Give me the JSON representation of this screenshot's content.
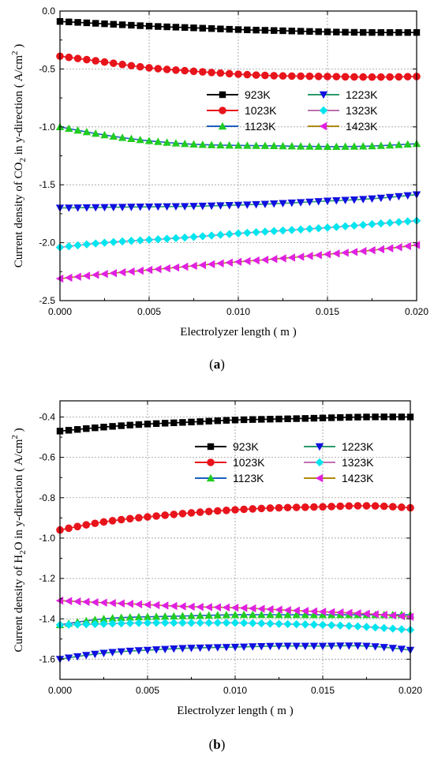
{
  "chart_data": [
    {
      "type": "line",
      "caption": {
        "open": "(",
        "letter": "a",
        "close": ")"
      },
      "xlabel": "Electrolyzer length ( m )",
      "ylabel": {
        "prefix": "Current density of CO",
        "sub": "2",
        "mid": " in y-direction ( A/cm",
        "sup": "2",
        "suffix": " )"
      },
      "xlim": [
        0,
        0.02
      ],
      "ylim": [
        -2.5,
        0
      ],
      "xticks": [
        0,
        0.005,
        0.01,
        0.015,
        0.02
      ],
      "xtick_labels": [
        "0.000",
        "0.005",
        "0.010",
        "0.015",
        "0.020"
      ],
      "yticks": [
        -2.5,
        -2.0,
        -1.5,
        -1.0,
        -0.5,
        0.0
      ],
      "ytick_labels": [
        "-2.5",
        "-2.0",
        "-1.5",
        "-1.0",
        "-0.5",
        "0.0"
      ],
      "grid": true,
      "legend_position": "upper-right",
      "x": [
        0,
        0.0025,
        0.005,
        0.0075,
        0.01,
        0.0125,
        0.015,
        0.0175,
        0.02
      ],
      "series": [
        {
          "name": "923K",
          "color": "#000000",
          "marker": "square",
          "values": [
            -0.09,
            -0.11,
            -0.13,
            -0.145,
            -0.16,
            -0.17,
            -0.18,
            -0.185,
            -0.185
          ]
        },
        {
          "name": "1023K",
          "color": "#e8141c",
          "marker": "circle",
          "values": [
            -0.39,
            -0.44,
            -0.49,
            -0.52,
            -0.545,
            -0.56,
            -0.565,
            -0.57,
            -0.565
          ]
        },
        {
          "name": "1123K",
          "color": "#22cc22",
          "line_color": "#1a5fbf",
          "marker": "triangle-up",
          "values": [
            -1.0,
            -1.07,
            -1.12,
            -1.15,
            -1.16,
            -1.165,
            -1.17,
            -1.165,
            -1.145
          ]
        },
        {
          "name": "1223K",
          "color": "#1010e0",
          "line_color": "#2a9a6a",
          "marker": "triangle-down",
          "values": [
            -1.7,
            -1.695,
            -1.69,
            -1.685,
            -1.675,
            -1.66,
            -1.64,
            -1.62,
            -1.585
          ]
        },
        {
          "name": "1323K",
          "color": "#00e5ee",
          "line_color": "#c070b0",
          "marker": "diamond",
          "values": [
            -2.04,
            -2.0,
            -1.975,
            -1.95,
            -1.92,
            -1.895,
            -1.87,
            -1.84,
            -1.81
          ]
        },
        {
          "name": "1423K",
          "color": "#e020e0",
          "line_color": "#b08a10",
          "marker": "triangle-left",
          "values": [
            -2.31,
            -2.27,
            -2.235,
            -2.2,
            -2.165,
            -2.135,
            -2.1,
            -2.065,
            -2.02
          ]
        }
      ]
    },
    {
      "type": "line",
      "caption": {
        "open": "(",
        "letter": "b",
        "close": ")"
      },
      "xlabel": "Electrolyzer length ( m )",
      "ylabel": {
        "prefix": "Current density of H",
        "sub": "2",
        "mid": "O in y-direction ( A/cm",
        "sup": "2",
        "suffix": " )"
      },
      "xlim": [
        0,
        0.02
      ],
      "ylim": [
        -1.7,
        -0.32
      ],
      "xticks": [
        0,
        0.005,
        0.01,
        0.015,
        0.02
      ],
      "xtick_labels": [
        "0.000",
        "0.005",
        "0.010",
        "0.015",
        "0.020"
      ],
      "yticks": [
        -1.6,
        -1.4,
        -1.2,
        -1.0,
        -0.8,
        -0.6,
        -0.4
      ],
      "ytick_labels": [
        "-1.6",
        "-1.4",
        "-1.2",
        "-1.0",
        "-0.8",
        "-0.6",
        "-0.4"
      ],
      "grid": true,
      "legend_position": "upper-right",
      "x": [
        0,
        0.0025,
        0.005,
        0.0075,
        0.01,
        0.0125,
        0.015,
        0.0175,
        0.02
      ],
      "series": [
        {
          "name": "923K",
          "color": "#000000",
          "marker": "square",
          "values": [
            -0.47,
            -0.45,
            -0.435,
            -0.425,
            -0.415,
            -0.41,
            -0.405,
            -0.4,
            -0.4
          ]
        },
        {
          "name": "1023K",
          "color": "#e8141c",
          "marker": "circle",
          "values": [
            -0.96,
            -0.92,
            -0.895,
            -0.875,
            -0.86,
            -0.85,
            -0.845,
            -0.84,
            -0.85
          ]
        },
        {
          "name": "1123K",
          "color": "#22cc22",
          "line_color": "#1a5fbf",
          "marker": "triangle-up",
          "values": [
            -1.43,
            -1.4,
            -1.39,
            -1.385,
            -1.38,
            -1.38,
            -1.38,
            -1.38,
            -1.38
          ]
        },
        {
          "name": "1223K",
          "color": "#1010e0",
          "line_color": "#2a9a6a",
          "marker": "triangle-down",
          "values": [
            -1.6,
            -1.57,
            -1.555,
            -1.545,
            -1.54,
            -1.535,
            -1.535,
            -1.535,
            -1.555
          ]
        },
        {
          "name": "1323K",
          "color": "#00e5ee",
          "line_color": "#c070b0",
          "marker": "diamond",
          "values": [
            -1.43,
            -1.425,
            -1.42,
            -1.42,
            -1.42,
            -1.425,
            -1.43,
            -1.44,
            -1.455
          ]
        },
        {
          "name": "1423K",
          "color": "#e020e0",
          "line_color": "#b08a10",
          "marker": "triangle-left",
          "values": [
            -1.31,
            -1.32,
            -1.33,
            -1.34,
            -1.345,
            -1.355,
            -1.365,
            -1.375,
            -1.39
          ]
        }
      ]
    }
  ]
}
